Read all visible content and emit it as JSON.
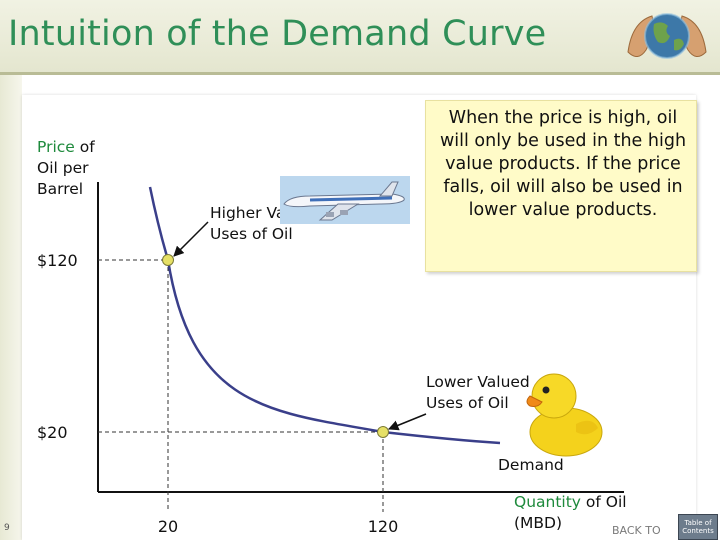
{
  "title": "Intuition of the Demand Curve",
  "slide_number": "9",
  "callout": "When the price is high, oil will only be used in the high value products. If the price falls, oil will also be used in lower value products.",
  "y_axis": {
    "highlight": "Price",
    "label_rest": " of Oil per Barrel"
  },
  "x_axis": {
    "highlight": "Quantity",
    "label_rest": " of Oil (MBD)"
  },
  "labels": {
    "higher": "Higher Valued Uses of Oil",
    "lower": "Lower Valued Uses of Oil",
    "demand": "Demand"
  },
  "nav": {
    "back": "BACK TO",
    "toc": "Table of Contents"
  },
  "colors": {
    "title": "#2f8f58",
    "curve": "#3a3f8a",
    "point": "#e6e066",
    "highlight": "#1e8a3c",
    "callout_bg": "#fffbc8"
  },
  "icons": [
    "globe-in-hands-icon",
    "airplane-icon",
    "rubber-duck-icon"
  ],
  "chart_data": {
    "type": "line",
    "series": [
      {
        "name": "Demand",
        "x": [
          20,
          120
        ],
        "y": [
          120,
          20
        ]
      }
    ],
    "points": [
      {
        "x": 20,
        "y": 120,
        "label": "Higher Valued Uses of Oil"
      },
      {
        "x": 120,
        "y": 20,
        "label": "Lower Valued Uses of Oil"
      }
    ],
    "x_ticks": [
      {
        "value": 20,
        "label": "20"
      },
      {
        "value": 120,
        "label": "120"
      }
    ],
    "y_ticks": [
      {
        "value": 120,
        "label": "$120"
      },
      {
        "value": 20,
        "label": "$20"
      }
    ],
    "xlabel": "Quantity of Oil (MBD)",
    "ylabel": "Price of Oil per Barrel",
    "grid": false
  }
}
